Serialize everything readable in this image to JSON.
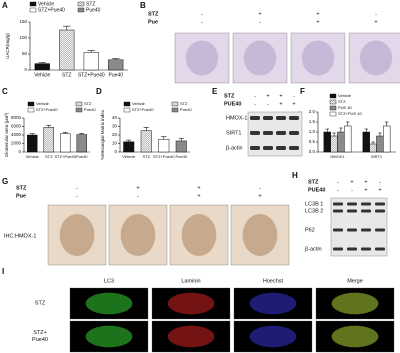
{
  "chart_data": [
    {
      "type": "bar",
      "panel": "A",
      "ylabel": "UACR(mg/g)",
      "categories": [
        "Vehicle",
        "STZ",
        "STZ+Pue40",
        "Pue40"
      ],
      "values": [
        20,
        125,
        55,
        32
      ],
      "errors": [
        3,
        12,
        6,
        4
      ],
      "colors": [
        "#111111",
        "#cfcfcf",
        "#ffffff",
        "#8a8a8a"
      ],
      "legend": [
        "Vehicle",
        "STZ",
        "STZ+Pue40",
        "Pue40"
      ],
      "ylim": [
        0,
        150
      ],
      "yticks": [
        0,
        50,
        100,
        150
      ]
    },
    {
      "type": "bar",
      "panel": "C",
      "ylabel": "Glomerular area (μm²)",
      "categories": [
        "Vehicle",
        "STZ",
        "STZ+Pue40",
        "Pue40"
      ],
      "values": [
        4000,
        5800,
        4300,
        4100
      ],
      "errors": [
        300,
        500,
        350,
        300
      ],
      "colors": [
        "#111111",
        "#cfcfcf",
        "#ffffff",
        "#8a8a8a"
      ],
      "legend": [
        "Vehicle",
        "STZ",
        "STZ+Pue40",
        "Pue40"
      ],
      "ylim": [
        0,
        8000
      ],
      "yticks": [
        0,
        2000,
        4000,
        6000,
        8000
      ]
    },
    {
      "type": "bar",
      "panel": "D",
      "ylabel": "%Mesangial Matrix index",
      "categories": [
        "Vehicle",
        "STZ",
        "STZ+Pue40",
        "Pue40"
      ],
      "values": [
        12,
        25,
        15,
        13
      ],
      "errors": [
        2,
        4,
        3,
        3
      ],
      "colors": [
        "#111111",
        "#cfcfcf",
        "#ffffff",
        "#8a8a8a"
      ],
      "legend": [
        "Vehicle",
        "STZ",
        "STZ+Pue40",
        "Pue40"
      ],
      "ylim": [
        0,
        40
      ],
      "yticks": [
        0,
        10,
        20,
        30,
        40
      ]
    },
    {
      "type": "bar",
      "panel": "F",
      "ylabel": "Relative mRNA level",
      "categories": [
        "HMOX1",
        "SIRT1"
      ],
      "series": [
        {
          "name": "Vehicle",
          "color": "#111111",
          "values": [
            1.0,
            1.0
          ],
          "errors": [
            0.15,
            0.15
          ]
        },
        {
          "name": "STZ",
          "color": "#cfcfcf",
          "values": [
            0.8,
            0.4
          ],
          "errors": [
            0.15,
            0.1
          ]
        },
        {
          "name": "PUE 40",
          "color": "#8a8a8a",
          "values": [
            1.0,
            0.8
          ],
          "errors": [
            0.2,
            0.15
          ]
        },
        {
          "name": "STZ+PUE 40",
          "color": "#ffffff",
          "values": [
            1.3,
            1.3
          ],
          "errors": [
            0.2,
            0.2
          ]
        }
      ],
      "ylim": [
        0,
        2
      ],
      "yticks": [
        {
          "value": 0,
          "label": "0.0"
        },
        {
          "value": 0.5,
          "label": "0.5"
        },
        {
          "value": 1,
          "label": "1.0"
        },
        {
          "value": 1.5,
          "label": "1.5"
        },
        {
          "value": 2,
          "label": "2.0"
        }
      ]
    }
  ],
  "panels": {
    "B": {
      "label": "B",
      "rows": [
        {
          "name": "STZ",
          "signs": [
            "-",
            "+",
            "+",
            "-"
          ]
        },
        {
          "name": "Pue",
          "signs": [
            "-",
            "-",
            "+",
            "+"
          ]
        }
      ]
    },
    "E": {
      "label": "E",
      "rows": [
        {
          "name": "STZ",
          "signs": [
            "-",
            "+",
            "+",
            "-"
          ]
        },
        {
          "name": "PUE40",
          "signs": [
            "-",
            "-",
            "+",
            "+"
          ]
        }
      ],
      "bands": [
        "HMOX-1",
        "SIRT1",
        "β-actin"
      ]
    },
    "G": {
      "label": "G",
      "stain": "IHC:HMOX-1",
      "rows": [
        {
          "name": "STZ",
          "signs": [
            "-",
            "+",
            "+",
            "-"
          ]
        },
        {
          "name": "Pue",
          "signs": [
            "-",
            "-",
            "+",
            "+"
          ]
        }
      ]
    },
    "H": {
      "label": "H",
      "rows": [
        {
          "name": "STZ",
          "signs": [
            "-",
            "+",
            "+",
            "-"
          ]
        },
        {
          "name": "PUE40",
          "signs": [
            "-",
            "-",
            "+",
            "+"
          ]
        }
      ],
      "bands": [
        "LC3B 1",
        "LC3B 2",
        "P62",
        "β-actin"
      ]
    },
    "I": {
      "label": "I",
      "columns": [
        "LC3",
        "Laminin",
        "Hoechst",
        "Merge"
      ],
      "rows": [
        [
          "STZ"
        ],
        [
          "STZ+",
          "Pue40"
        ]
      ]
    }
  }
}
